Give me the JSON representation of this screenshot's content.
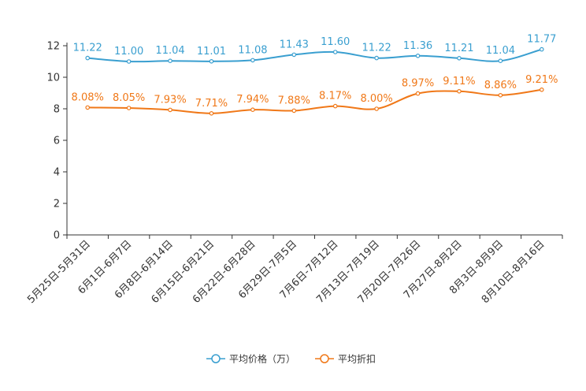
{
  "chart_data": {
    "type": "line",
    "title": "",
    "xlabel": "",
    "ylabel": "",
    "ylim": [
      0,
      12
    ],
    "yticks": [
      0,
      2,
      4,
      6,
      8,
      10,
      12
    ],
    "grid": false,
    "legend_position": "bottom-center",
    "categories": [
      "5月25日-5月31日",
      "6月1日-6月7日",
      "6月8日-6月14日",
      "6月15日-6月21日",
      "6月22日-6月28日",
      "6月29日-7月5日",
      "7月6日-7月12日",
      "7月13日-7月19日",
      "7月20日-7月26日",
      "7月27日-8月2日",
      "8月3日-8月9日",
      "8月10日-8月16日"
    ],
    "series": [
      {
        "name": "平均价格（万）",
        "color": "#3a9fd0",
        "values": [
          11.22,
          11.0,
          11.04,
          11.01,
          11.08,
          11.43,
          11.6,
          11.22,
          11.36,
          11.21,
          11.04,
          11.77
        ],
        "labels": [
          "11.22",
          "11.00",
          "11.04",
          "11.01",
          "11.08",
          "11.43",
          "11.60",
          "11.22",
          "11.36",
          "11.21",
          "11.04",
          "11.77"
        ]
      },
      {
        "name": "平均折扣",
        "color": "#f07818",
        "values": [
          8.08,
          8.05,
          7.93,
          7.71,
          7.94,
          7.88,
          8.17,
          8.0,
          8.97,
          9.11,
          8.86,
          9.21
        ],
        "labels": [
          "8.08%",
          "8.05%",
          "7.93%",
          "7.71%",
          "7.94%",
          "7.88%",
          "8.17%",
          "8.00%",
          "8.97%",
          "9.11%",
          "8.86%",
          "9.21%"
        ]
      }
    ]
  }
}
